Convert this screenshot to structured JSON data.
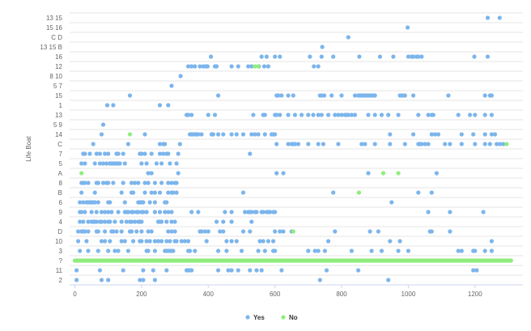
{
  "chart_data": {
    "type": "scatter",
    "ylabel": "Life Boat",
    "xlabel": "",
    "x_ticks": [
      "0",
      "200",
      "400",
      "600",
      "800",
      "1000",
      "1200"
    ],
    "xlim": [
      -5,
      1310
    ],
    "grid": "horizontal",
    "legend_position": "bottom-center",
    "categories": [
      "13 15",
      "15 16",
      "C D",
      "13 15 B",
      "16",
      "12",
      "8 10",
      "5 7",
      "15",
      "1",
      "13",
      "5 9",
      "14",
      "C",
      "7",
      "5",
      "A",
      "8",
      "B",
      "6",
      "9",
      "4",
      "D",
      "10",
      "3",
      "?",
      "11",
      "2"
    ],
    "colors": {
      "Yes": "#7cb5ec",
      "No": "#90ed7d"
    },
    "series": [
      {
        "name": "Yes",
        "points": [
          [
            "13 15",
            [
              1238,
              1274
            ]
          ],
          [
            "15 16",
            [
              998
            ]
          ],
          [
            "C D",
            [
              820
            ]
          ],
          [
            "13 15 B",
            [
              742
            ]
          ],
          [
            "16",
            [
              408,
              560,
              575,
              600,
              615,
              705,
              740,
              775,
              853,
              915,
              955,
              1000,
              1010,
              1015,
              1025,
              1030,
              1040,
              1198,
              1238
            ]
          ],
          [
            "12",
            [
              340,
              350,
              360,
              375,
              385,
              392,
              398,
              420,
              425,
              470,
              490,
              520,
              530,
              552,
              568,
              580,
              717,
              730
            ]
          ],
          [
            "8 10",
            [
              317
            ]
          ],
          [
            "5 7",
            [
              290
            ]
          ],
          [
            "15",
            [
              165,
              430,
              605,
              610,
              620,
              640,
              655,
              735,
              740,
              748,
              770,
              800,
              840,
              850,
              855,
              860,
              865,
              870,
              875,
              880,
              885,
              890,
              895,
              900,
              975,
              980,
              985,
              990,
              1015,
              1120,
              1230,
              1245,
              1250
            ]
          ],
          [
            "1",
            [
              97,
              115,
              255,
              280
            ]
          ],
          [
            "13",
            [
              335,
              340,
              350,
              400,
              420,
              535,
              565,
              570,
              600,
              605,
              615,
              640,
              660,
              680,
              700,
              715,
              730,
              740,
              760,
              780,
              790,
              800,
              810,
              815,
              820,
              830,
              840,
              880,
              900,
              920,
              940,
              970,
              1030,
              1060,
              1070,
              1075,
              1150,
              1185,
              1200,
              1230,
              1250
            ]
          ],
          [
            "5 9",
            [
              85
            ]
          ],
          [
            "14",
            [
              80,
              210,
              345,
              350,
              355,
              360,
              365,
              370,
              380,
              410,
              415,
              430,
              445,
              470,
              485,
              505,
              530,
              540,
              550,
              570,
              590,
              595,
              600,
              945,
              1015,
              1070,
              1080,
              1090,
              1160,
              1195,
              1230,
              1250,
              1260
            ]
          ],
          [
            "C",
            [
              55,
              160,
              255,
              265,
              270,
              315,
              605,
              640,
              650,
              655,
              660,
              670,
              700,
              730,
              745,
              790,
              860,
              870,
              900,
              945,
              990,
              1030,
              1035,
              1040,
              1050,
              1060,
              1110,
              1125,
              1160,
              1200,
              1230,
              1245,
              1265,
              1275,
              1285
            ]
          ],
          [
            "7",
            [
              25,
              30,
              45,
              65,
              75,
              90,
              100,
              125,
              130,
              145,
              195,
              200,
              210,
              230,
              255,
              265,
              275,
              280,
              310,
              525
            ]
          ],
          [
            "5",
            [
              20,
              30,
              60,
              75,
              85,
              95,
              105,
              110,
              115,
              120,
              125,
              130,
              135,
              150,
              200,
              215,
              245,
              260,
              285,
              305
            ]
          ],
          [
            "A",
            [
              220,
              230,
              310,
              605,
              625,
              880,
              1085
            ]
          ],
          [
            "8",
            [
              20,
              25,
              30,
              40,
              65,
              70,
              85,
              95,
              100,
              115,
              145,
              170,
              180,
              190,
              210,
              220,
              240,
              260,
              280,
              290,
              300,
              305
            ]
          ],
          [
            "B",
            [
              20,
              60,
              140,
              170,
              175,
              210,
              230,
              240,
              255,
              280,
              290,
              295,
              305,
              505,
              775,
              1030,
              1070
            ]
          ],
          [
            "6",
            [
              15,
              25,
              35,
              40,
              45,
              50,
              55,
              60,
              70,
              100,
              105,
              150,
              190,
              195,
              200,
              205,
              225,
              240,
              270,
              275,
              950
            ]
          ],
          [
            "9",
            [
              15,
              20,
              30,
              50,
              65,
              80,
              90,
              100,
              110,
              130,
              150,
              155,
              160,
              170,
              175,
              185,
              190,
              200,
              205,
              215,
              240,
              255,
              270,
              280,
              290,
              350,
              370,
              450,
              470,
              510,
              520,
              525,
              530,
              540,
              545,
              560,
              565,
              575,
              580,
              585,
              595,
              600,
              1060,
              1125,
              1225
            ]
          ],
          [
            "4",
            [
              15,
              25,
              40,
              50,
              55,
              60,
              65,
              75,
              80,
              90,
              100,
              105,
              120,
              140,
              155,
              165,
              170,
              180,
              190,
              195,
              200,
              250,
              255,
              260,
              275,
              290,
              300,
              425,
              445,
              470,
              530
            ]
          ],
          [
            "D",
            [
              10,
              20,
              25,
              30,
              40,
              65,
              70,
              90,
              110,
              115,
              125,
              140,
              165,
              170,
              185,
              200,
              220,
              230,
              280,
              290,
              300,
              375,
              380,
              390,
              400,
              435,
              445,
              505,
              525,
              600,
              615,
              625,
              650,
              780,
              885,
              910,
              1065,
              1070,
              1125
            ]
          ],
          [
            "10",
            [
              10,
              35,
              80,
              90,
              105,
              140,
              150,
              175,
              195,
              200,
              215,
              225,
              240,
              250,
              260,
              275,
              285,
              300,
              305,
              320,
              330,
              340,
              395,
              455,
              470,
              485,
              555,
              565,
              580,
              595,
              760,
              945,
              975,
              1250
            ]
          ],
          [
            "3",
            [
              15,
              40,
              70,
              100,
              120,
              130,
              160,
              215,
              220,
              240,
              270,
              275,
              280,
              285,
              290,
              295,
              340,
              345,
              360,
              430,
              455,
              500,
              550,
              570,
              595,
              600,
              700,
              720,
              730,
              750,
              830,
              890,
              920,
              970,
              1000,
              1150,
              1160,
              1195,
              1200,
              1230,
              1250
            ]
          ],
          [
            "11",
            [
              5,
              75,
              145,
              205,
              235,
              275,
              335,
              340,
              345,
              350,
              430,
              460,
              470,
              490,
              525,
              545,
              560,
              620,
              755,
              850,
              1195,
              1205
            ]
          ],
          [
            "2",
            [
              5,
              80,
              100,
              195,
              205,
              240,
              735,
              940
            ]
          ]
        ]
      },
      {
        "name": "No",
        "points": [
          [
            "12",
            [
              540,
              550
            ]
          ],
          [
            "14",
            [
              165
            ]
          ],
          [
            "C",
            [
              1295
            ]
          ],
          [
            "A",
            [
              20,
              925,
              970
            ]
          ],
          [
            "B",
            [
              852
            ]
          ],
          [
            "D",
            [
              655
            ]
          ],
          [
            "?",
            {
              "from": 0,
              "to": 1310,
              "step": 3
            }
          ]
        ]
      }
    ]
  },
  "legend": [
    {
      "label": "Yes",
      "color": "#7cb5ec"
    },
    {
      "label": "No",
      "color": "#90ed7d"
    }
  ]
}
